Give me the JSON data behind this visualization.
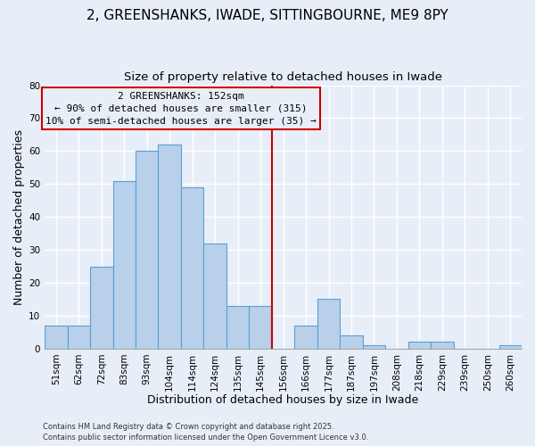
{
  "title": "2, GREENSHANKS, IWADE, SITTINGBOURNE, ME9 8PY",
  "subtitle": "Size of property relative to detached houses in Iwade",
  "xlabel": "Distribution of detached houses by size in Iwade",
  "ylabel": "Number of detached properties",
  "categories": [
    "51sqm",
    "62sqm",
    "72sqm",
    "83sqm",
    "93sqm",
    "104sqm",
    "114sqm",
    "124sqm",
    "135sqm",
    "145sqm",
    "156sqm",
    "166sqm",
    "177sqm",
    "187sqm",
    "197sqm",
    "208sqm",
    "218sqm",
    "229sqm",
    "239sqm",
    "250sqm",
    "260sqm"
  ],
  "values": [
    7,
    7,
    25,
    51,
    60,
    62,
    49,
    32,
    13,
    13,
    0,
    7,
    15,
    4,
    1,
    0,
    2,
    2,
    0,
    0,
    1
  ],
  "bar_color": "#b8d0ea",
  "bar_edge_color": "#5a9fd4",
  "vline_color": "#cc0000",
  "annotation_title": "2 GREENSHANKS: 152sqm",
  "annotation_line1": "← 90% of detached houses are smaller (315)",
  "annotation_line2": "10% of semi-detached houses are larger (35) →",
  "annotation_box_edge_color": "#cc0000",
  "ylim": [
    0,
    80
  ],
  "yticks": [
    0,
    10,
    20,
    30,
    40,
    50,
    60,
    70,
    80
  ],
  "footer1": "Contains HM Land Registry data © Crown copyright and database right 2025.",
  "footer2": "Contains public sector information licensed under the Open Government Licence v3.0.",
  "background_color": "#e8eef8",
  "plot_bg_color": "#e8eef8",
  "title_fontsize": 11,
  "subtitle_fontsize": 9.5,
  "tick_fontsize": 7.5,
  "axis_label_fontsize": 9,
  "footer_fontsize": 6,
  "annotation_fontsize": 8
}
